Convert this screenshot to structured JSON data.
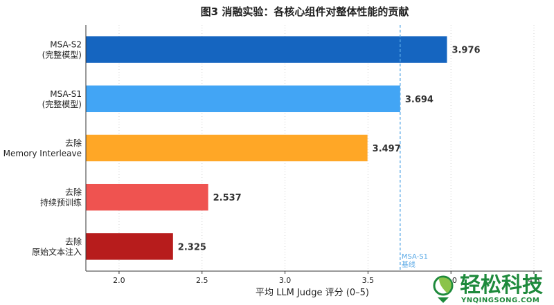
{
  "chart_data": {
    "type": "bar",
    "orientation": "horizontal",
    "title": "图3 消融实验：各核心组件对整体性能的贡献",
    "xlabel": "平均 LLM Judge 评分 (0–5)",
    "xlim": [
      1.8,
      4.55
    ],
    "xticks": [
      "2.0",
      "2.5",
      "3.0",
      "3.5",
      "4.0",
      "4.5"
    ],
    "grid": "vertical-dotted",
    "bars": [
      {
        "label_lines": [
          "MSA-S2",
          "(完整模型)"
        ],
        "value": 3.976,
        "value_label": "3.976",
        "color": "#1565c0"
      },
      {
        "label_lines": [
          "MSA-S1",
          "(完整模型)"
        ],
        "value": 3.694,
        "value_label": "3.694",
        "color": "#42a5f5"
      },
      {
        "label_lines": [
          "去除",
          "Memory Interleave"
        ],
        "value": 3.497,
        "value_label": "3.497",
        "color": "#ffa726"
      },
      {
        "label_lines": [
          "去除",
          "持续预训练"
        ],
        "value": 2.537,
        "value_label": "2.537",
        "color": "#ef5350"
      },
      {
        "label_lines": [
          "去除",
          "原始文本注入"
        ],
        "value": 2.325,
        "value_label": "2.325",
        "color": "#b71c1c"
      }
    ],
    "reference_line": {
      "value": 3.694,
      "label_lines": [
        "MSA-S1",
        "基线"
      ],
      "color": "#5aa9e6",
      "style": "dashed"
    }
  },
  "watermark": {
    "text_cn": "轻松科技",
    "text_en": "YNQINGSONG.COM",
    "color": "#1e8a3c",
    "icon": "leaf-globe-logo-icon"
  }
}
